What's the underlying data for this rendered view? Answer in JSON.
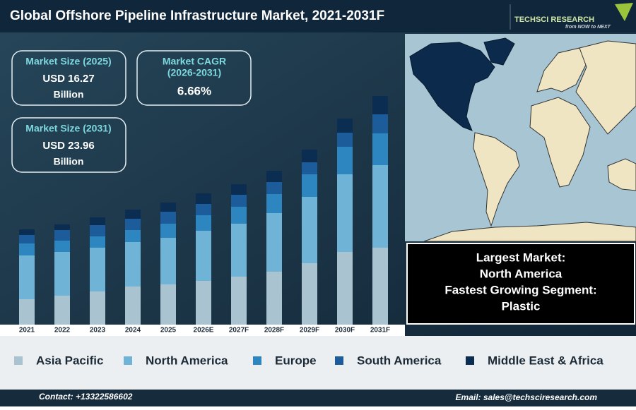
{
  "chart_data": {
    "type": "bar",
    "stacked": true,
    "title": "Global Offshore Pipeline Infrastructure Market, 2021-2031F",
    "categories": [
      "2021",
      "2022",
      "2023",
      "2024",
      "2025",
      "2026E",
      "2027F",
      "2028F",
      "2029F",
      "2030F",
      "2031F"
    ],
    "series": [
      {
        "name": "Asia Pacific",
        "color": "#a9c3d1",
        "values": [
          36,
          41,
          47,
          54,
          57,
          62,
          68,
          75,
          87,
          103,
          109
        ]
      },
      {
        "name": "North America",
        "color": "#6fb3d6",
        "values": [
          62,
          62,
          62,
          63,
          66,
          71,
          75,
          83,
          94,
          110,
          117
        ]
      },
      {
        "name": "Europe",
        "color": "#2e86c1",
        "values": [
          17,
          16,
          16,
          17,
          20,
          22,
          24,
          27,
          32,
          39,
          45
        ]
      },
      {
        "name": "South America",
        "color": "#1c5c9a",
        "values": [
          12,
          15,
          16,
          16,
          17,
          16,
          17,
          17,
          17,
          20,
          27
        ]
      },
      {
        "name": "Middle East & Africa",
        "color": "#0c2d52",
        "values": [
          8,
          8,
          11,
          13,
          13,
          15,
          15,
          16,
          18,
          20,
          26
        ]
      }
    ],
    "ylim": [
      0,
      330
    ],
    "grid": false,
    "legend": "bottom"
  },
  "logo": {
    "name": "TECHSCI RESEARCH",
    "tagline": "from NOW to NEXT"
  },
  "stats": [
    {
      "label": "Market Size (2025)",
      "value": "USD 16.27",
      "unit": "Billion"
    },
    {
      "label": "Market CAGR",
      "sublabel": "(2026-2031)",
      "value": "6.66%"
    },
    {
      "label": "Market Size (2031)",
      "value": "USD 23.96",
      "unit": "Billion"
    }
  ],
  "highlights": [
    "Largest Market:",
    "North America",
    "Fastest Growing Segment:",
    "Plastic"
  ],
  "footer": {
    "contact": "Contact: +13322586602",
    "email": "Email: sales@techsciresearch.com"
  }
}
